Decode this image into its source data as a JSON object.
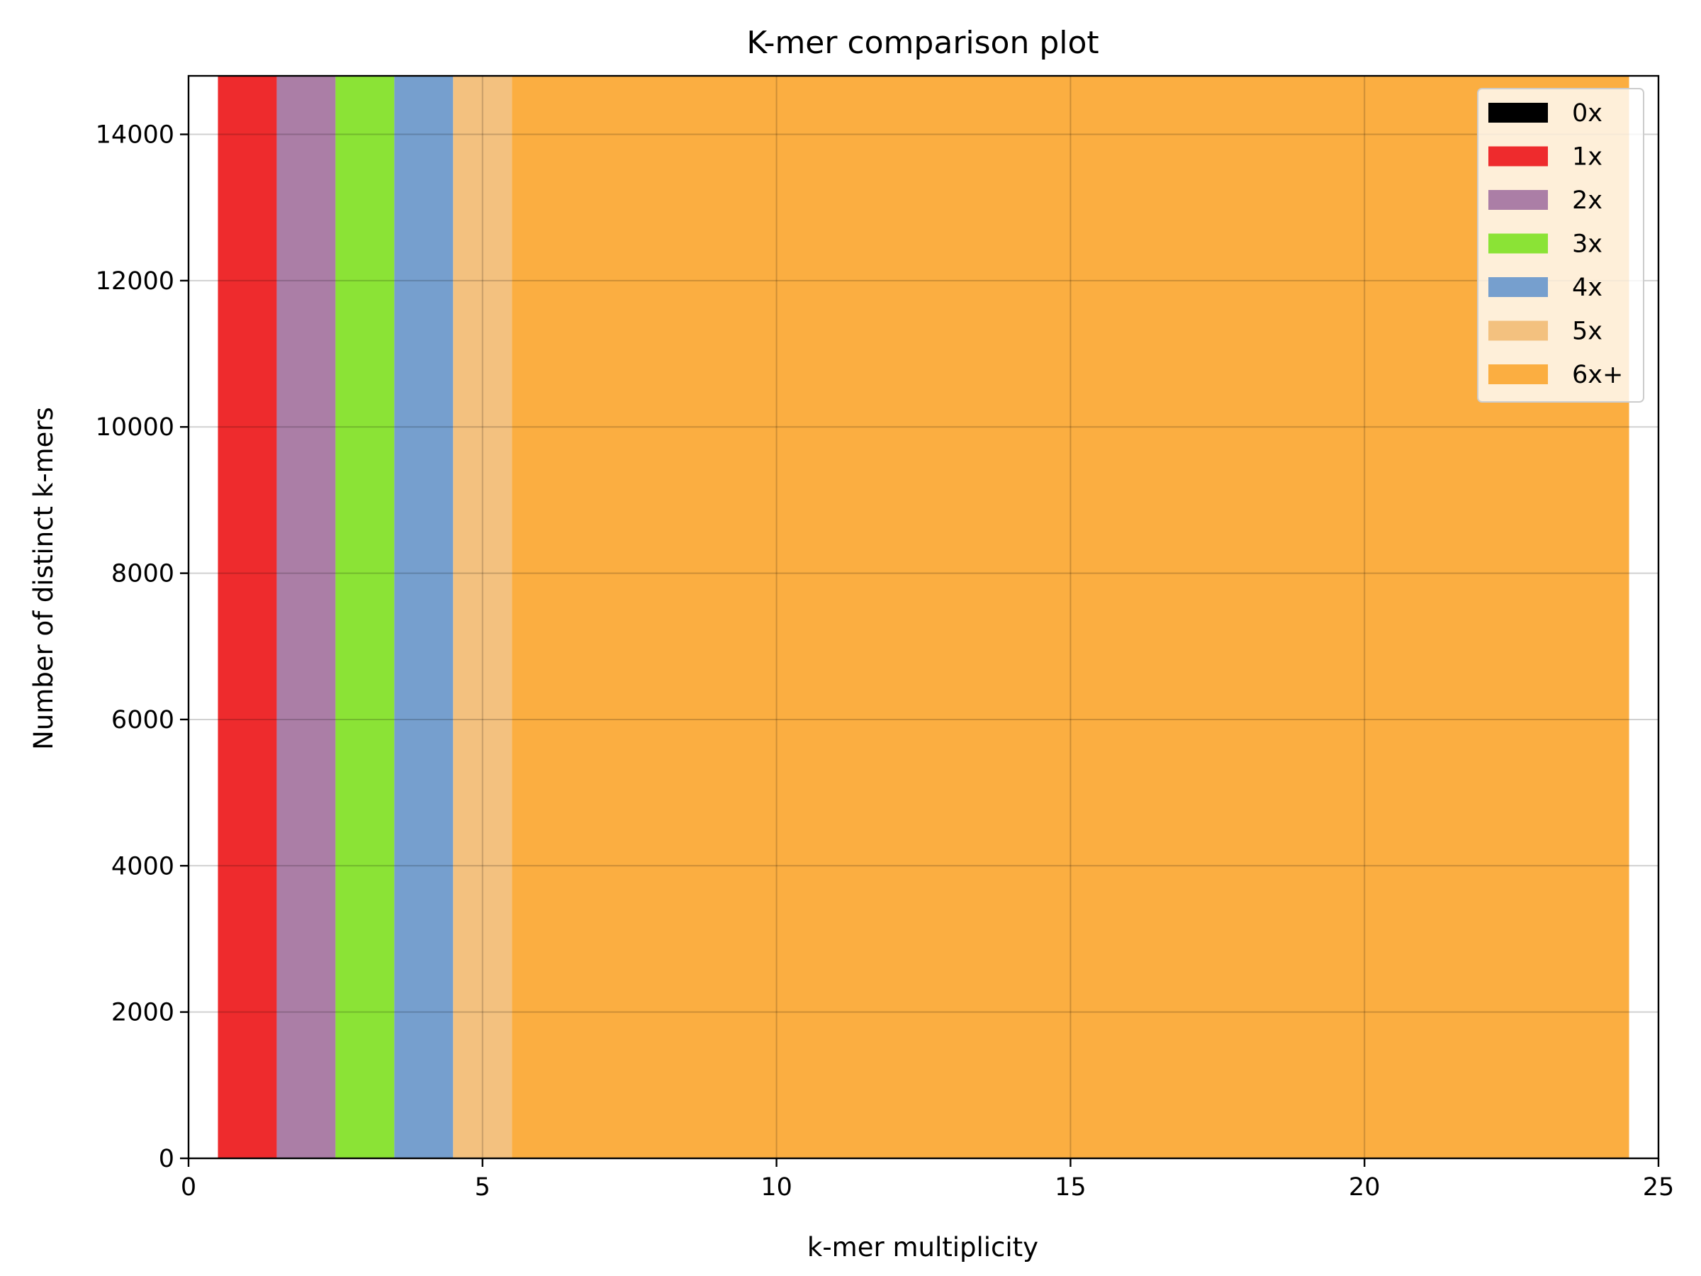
{
  "chart_data": {
    "type": "area",
    "title": "K-mer comparison plot",
    "xlabel": "k-mer multiplicity",
    "ylabel": "Number of distinct k-mers",
    "xlim": [
      0,
      25
    ],
    "ylim": [
      0,
      14800
    ],
    "xticks": [
      0,
      5,
      10,
      15,
      20,
      25
    ],
    "yticks": [
      0,
      2000,
      4000,
      6000,
      8000,
      10000,
      12000,
      14000
    ],
    "grid": true,
    "legend_position": "top-right",
    "series": [
      {
        "name": "0x",
        "color": "#000000",
        "x_start": 0.5,
        "x_end": 0.5,
        "value": 14800
      },
      {
        "name": "1x",
        "color": "#ee2b2d",
        "x_start": 0.5,
        "x_end": 1.5,
        "value": 14800
      },
      {
        "name": "2x",
        "color": "#ab7ea6",
        "x_start": 1.5,
        "x_end": 2.5,
        "value": 14800
      },
      {
        "name": "3x",
        "color": "#8be336",
        "x_start": 2.5,
        "x_end": 3.5,
        "value": 14800
      },
      {
        "name": "4x",
        "color": "#769fce",
        "x_start": 3.5,
        "x_end": 4.5,
        "value": 14800
      },
      {
        "name": "5x",
        "color": "#f3c17f",
        "x_start": 4.5,
        "x_end": 5.5,
        "value": 14800
      },
      {
        "name": "6x+",
        "color": "#fbae41",
        "x_start": 5.5,
        "x_end": 24.5,
        "value": 14800
      }
    ]
  }
}
